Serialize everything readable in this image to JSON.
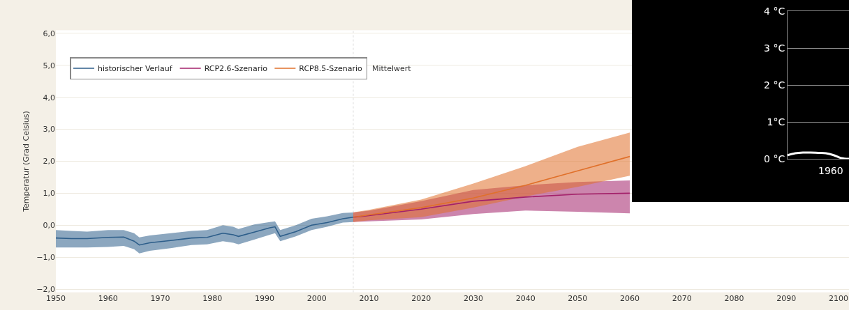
{
  "chart_data": [
    {
      "type": "line",
      "ylabel": "Temperatur (Grad Celsius)",
      "xlim": [
        1950,
        2102
      ],
      "xticks": [
        1950,
        1960,
        1970,
        1980,
        1990,
        2000,
        2010,
        2020,
        2030,
        2040,
        2050,
        2060,
        2070,
        2080,
        2090,
        2100
      ],
      "ylim": [
        -2.1,
        6.1
      ],
      "yticks": [
        {
          "value": -2,
          "label": "−2,0"
        },
        {
          "value": -1,
          "label": "−1,0"
        },
        {
          "value": 0,
          "label": "0,0"
        },
        {
          "value": 1,
          "label": "1,0"
        },
        {
          "value": 2,
          "label": "2,0"
        },
        {
          "value": 3,
          "label": "3,0"
        },
        {
          "value": 4,
          "label": "4,0"
        },
        {
          "value": 5,
          "label": "5,0"
        },
        {
          "value": 6,
          "label": "6,0"
        }
      ],
      "grid": "y",
      "legend": "top left",
      "annotations": [
        "Mittelwert"
      ],
      "ref_lines": [
        {
          "axis": "x",
          "value": 2007,
          "color": "#dddddd",
          "line_style": "dotted"
        }
      ],
      "series": [
        {
          "name": "historischer Verlauf",
          "color": "#2d5e8a",
          "x": [
            1950,
            1953,
            1956,
            1960,
            1963,
            1965,
            1966,
            1968,
            1972,
            1976,
            1979,
            1982,
            1984,
            1985,
            1988,
            1991,
            1992,
            1993,
            1996,
            1999,
            2002,
            2005,
            2007
          ],
          "values": [
            -0.4,
            -0.42,
            -0.42,
            -0.38,
            -0.37,
            -0.5,
            -0.62,
            -0.55,
            -0.48,
            -0.4,
            -0.38,
            -0.25,
            -0.3,
            -0.35,
            -0.22,
            -0.08,
            -0.05,
            -0.35,
            -0.2,
            0.0,
            0.08,
            0.2,
            0.25
          ],
          "upper": [
            -0.15,
            -0.18,
            -0.2,
            -0.15,
            -0.15,
            -0.25,
            -0.38,
            -0.32,
            -0.25,
            -0.18,
            -0.15,
            0.0,
            -0.05,
            -0.12,
            0.02,
            0.1,
            0.12,
            -0.15,
            0.0,
            0.2,
            0.28,
            0.38,
            0.4
          ],
          "lower": [
            -0.7,
            -0.7,
            -0.7,
            -0.68,
            -0.65,
            -0.75,
            -0.88,
            -0.8,
            -0.72,
            -0.62,
            -0.6,
            -0.5,
            -0.55,
            -0.6,
            -0.45,
            -0.3,
            -0.25,
            -0.5,
            -0.35,
            -0.15,
            -0.05,
            0.08,
            0.1
          ]
        },
        {
          "name": "RCP2.6-Szenario",
          "color": "#a3206a",
          "x": [
            2007,
            2010,
            2020,
            2030,
            2040,
            2050,
            2060
          ],
          "values": [
            0.25,
            0.3,
            0.5,
            0.75,
            0.88,
            0.97,
            1.0
          ],
          "upper": [
            0.4,
            0.45,
            0.75,
            1.1,
            1.25,
            1.35,
            1.4
          ],
          "lower": [
            0.1,
            0.12,
            0.18,
            0.35,
            0.46,
            0.42,
            0.37
          ]
        },
        {
          "name": "RCP8.5-Szenario",
          "color": "#e0702a",
          "x": [
            2007,
            2010,
            2020,
            2030,
            2040,
            2050,
            2060
          ],
          "values": [
            0.25,
            0.32,
            0.55,
            0.85,
            1.25,
            1.7,
            2.15
          ],
          "upper": [
            0.4,
            0.48,
            0.8,
            1.3,
            1.85,
            2.45,
            2.9
          ],
          "lower": [
            0.1,
            0.15,
            0.25,
            0.55,
            0.9,
            1.2,
            1.55
          ]
        }
      ]
    },
    {
      "type": "line",
      "categories": [
        null,
        null,
        null,
        null,
        null,
        null,
        null,
        null,
        null
      ],
      "ylim": [
        0,
        4
      ],
      "yticks": [
        {
          "value": 0,
          "label": "0 °C"
        },
        {
          "value": 1,
          "label": "1°C"
        },
        {
          "value": 2,
          "label": "2 °C"
        },
        {
          "value": 3,
          "label": "3 °C"
        },
        {
          "value": 4,
          "label": "4 °C"
        }
      ],
      "grid": "y",
      "annotations": [
        "1960"
      ],
      "series": [
        {
          "color": "#ffffff",
          "values": [
            0.1,
            0.15,
            0.17,
            0.17,
            0.16,
            0.15,
            0.1,
            0.02,
            0.0
          ]
        }
      ]
    }
  ]
}
